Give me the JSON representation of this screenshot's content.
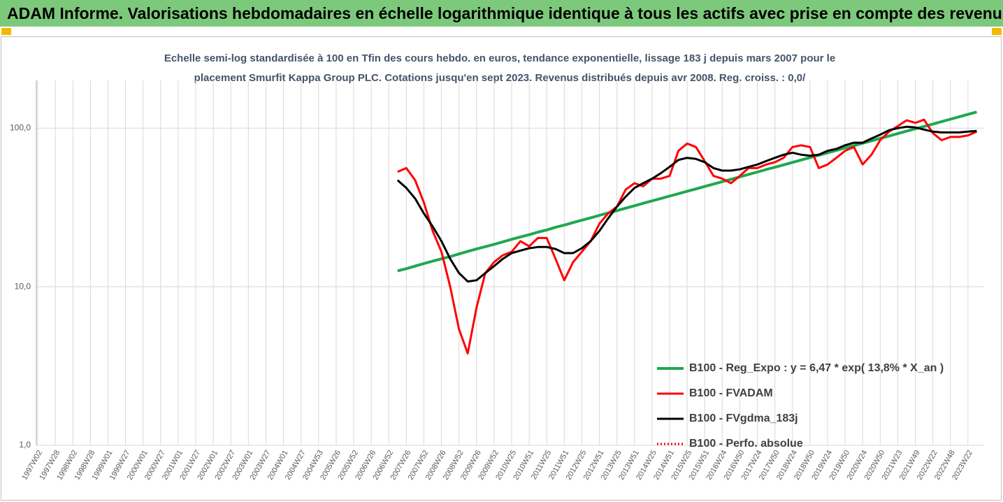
{
  "chart_data": {
    "type": "line",
    "title": "ADAM Informe. Valorisations hebdomadaires en échelle logarithmique identique à tous les actifs avec prise en compte des revenus co",
    "subtitle": [
      "Echelle semi-log standardisée à 100 en Tfin des cours hebdo. en euros, tendance exponentielle, lissage 183 j depuis mars 2007 pour le",
      "placement Smurfit Kappa Group PLC. Cotations jusqu'en sept 2023. Revenus distribués depuis avr 2008. Reg. croiss. : 0,0/"
    ],
    "categories": [
      "1997W02",
      null,
      "1997W28",
      null,
      "1998W02",
      null,
      "1998W28",
      null,
      "1999W01",
      null,
      "1999W27",
      null,
      "2000W01",
      null,
      "2000W27",
      null,
      "2001W01",
      null,
      "2001W27",
      null,
      "2002W01",
      null,
      "2002W27",
      null,
      "2003W01",
      null,
      "2003W27",
      null,
      "2004W01",
      null,
      "2004W27",
      null,
      "2004W53",
      null,
      "2005W26",
      null,
      "2005W52",
      null,
      "2006W26",
      null,
      "2006W52",
      null,
      "2007W26",
      null,
      "2007W52",
      null,
      "2008W26",
      null,
      "2008W52",
      null,
      "2009W26",
      null,
      "2009W52",
      null,
      "2010W25",
      null,
      "2010W51",
      null,
      "2011W25",
      null,
      "2011W51",
      null,
      "2012W25",
      null,
      "2012W51",
      null,
      "2013W25",
      null,
      "2013W51",
      null,
      "2014W25",
      null,
      "2014W51",
      null,
      "2015W25",
      null,
      "2015W51",
      null,
      "2016W24",
      null,
      "2016W50",
      null,
      "2017W24",
      null,
      "2017W50",
      null,
      "2018W24",
      null,
      "2018W50",
      null,
      "2019W24",
      null,
      "2019W50",
      null,
      "2020W24",
      null,
      "2020W50",
      null,
      "2021W23",
      null,
      "2021W49",
      null,
      "2022W22",
      null,
      "2022W48",
      null,
      "2023W22",
      null
    ],
    "log_scale": true,
    "grid": true,
    "ylim": [
      1,
      200
    ],
    "yticks": [
      {
        "value": 1,
        "label": "1,0"
      },
      {
        "value": 10,
        "label": "10,0"
      },
      {
        "value": 100,
        "label": "100,0"
      }
    ],
    "legend": "bottom-right",
    "series": [
      {
        "name": "B100 - Reg_Expo : y = 6,47 * exp( 13,8% *  X_an )",
        "color": "#1fa84f",
        "width": 4,
        "dash": "solid",
        "values": [
          null,
          null,
          null,
          null,
          null,
          null,
          null,
          null,
          null,
          null,
          null,
          null,
          null,
          null,
          null,
          null,
          null,
          null,
          null,
          null,
          null,
          null,
          null,
          null,
          null,
          null,
          null,
          null,
          null,
          null,
          null,
          null,
          null,
          null,
          null,
          null,
          null,
          null,
          null,
          null,
          null,
          12.6,
          13.0,
          13.5,
          14.0,
          14.5,
          15.0,
          15.5,
          16.1,
          16.7,
          17.3,
          17.9,
          18.5,
          19.2,
          19.9,
          20.6,
          21.3,
          22.1,
          22.8,
          23.7,
          24.5,
          25.4,
          26.3,
          27.2,
          28.2,
          29.2,
          30.2,
          31.3,
          32.4,
          33.6,
          34.8,
          36.0,
          37.3,
          38.6,
          40.0,
          41.4,
          42.9,
          44.4,
          46.0,
          47.6,
          49.3,
          51.1,
          52.9,
          54.8,
          56.7,
          58.7,
          60.8,
          63.0,
          65.2,
          67.5,
          69.9,
          72.4,
          75.0,
          77.6,
          80.4,
          83.2,
          86.2,
          89.2,
          92.4,
          95.7,
          99.1,
          102.6,
          106.2,
          110.0,
          113.9,
          117.9,
          122.1,
          126.4
        ]
      },
      {
        "name": "B100 - FVADAM",
        "color": "#ff0000",
        "width": 3,
        "dash": "solid",
        "values": [
          null,
          null,
          null,
          null,
          null,
          null,
          null,
          null,
          null,
          null,
          null,
          null,
          null,
          null,
          null,
          null,
          null,
          null,
          null,
          null,
          null,
          null,
          null,
          null,
          null,
          null,
          null,
          null,
          null,
          null,
          null,
          null,
          null,
          null,
          null,
          null,
          null,
          null,
          null,
          null,
          null,
          53,
          56,
          47,
          34,
          22.5,
          16.6,
          10,
          5.4,
          3.8,
          7.4,
          12.2,
          14.3,
          15.8,
          16.6,
          19.4,
          18,
          20.3,
          20.3,
          15,
          11,
          14.3,
          16.6,
          19.4,
          25,
          29,
          32,
          41,
          45,
          43,
          48,
          48,
          50,
          72,
          80,
          76,
          62,
          50,
          48,
          45,
          50,
          56,
          56,
          59,
          61,
          65,
          76,
          78,
          76,
          56,
          59,
          65,
          72,
          76,
          59,
          68,
          84,
          95,
          103,
          112,
          108,
          113,
          93,
          84,
          88,
          88,
          90,
          95
        ]
      },
      {
        "name": "B100 - FVgdma_183j",
        "color": "#000000",
        "width": 3,
        "dash": "solid",
        "values": [
          null,
          null,
          null,
          null,
          null,
          null,
          null,
          null,
          null,
          null,
          null,
          null,
          null,
          null,
          null,
          null,
          null,
          null,
          null,
          null,
          null,
          null,
          null,
          null,
          null,
          null,
          null,
          null,
          null,
          null,
          null,
          null,
          null,
          null,
          null,
          null,
          null,
          null,
          null,
          null,
          null,
          47,
          42,
          36,
          29,
          24,
          19.4,
          15,
          12.2,
          10.8,
          11,
          12.2,
          13.5,
          15,
          16.3,
          16.9,
          17.5,
          17.8,
          17.8,
          17.3,
          16.3,
          16.3,
          17.5,
          19.4,
          22.5,
          27,
          32,
          37,
          42,
          45,
          48,
          52,
          57,
          63,
          65,
          64,
          61,
          56,
          54,
          54,
          55,
          57,
          59,
          62,
          65,
          68,
          70,
          68,
          67,
          68,
          72,
          74,
          78,
          81,
          81,
          86,
          91,
          97,
          100,
          102,
          101,
          98,
          95,
          94,
          94,
          94,
          95,
          96
        ]
      },
      {
        "name": "B100 - Perfo. absolue",
        "color": "#ff0000",
        "width": 3,
        "dash": "dotted",
        "values": [
          null,
          null,
          null,
          null,
          null,
          null,
          null,
          null,
          null,
          null,
          null,
          null,
          null,
          null,
          null,
          null,
          null,
          null,
          null,
          null,
          null,
          null,
          null,
          null,
          null,
          null,
          null,
          null,
          null,
          null,
          null,
          null,
          null,
          null,
          null,
          null,
          null,
          null,
          null,
          null,
          null,
          null,
          null,
          null,
          null,
          null,
          null,
          null,
          null,
          null,
          null,
          null,
          null,
          null,
          null,
          null,
          null,
          null,
          null,
          null,
          null,
          null,
          null,
          null,
          null,
          null,
          null,
          null,
          null,
          null,
          null,
          null,
          null,
          null,
          null,
          null,
          null,
          null,
          null,
          null,
          null,
          null,
          null,
          null,
          null,
          null,
          null,
          null,
          null,
          null,
          null,
          null,
          null,
          null,
          null,
          null,
          null,
          null,
          null,
          null,
          null,
          null,
          null,
          null,
          null,
          null,
          null,
          null
        ]
      }
    ]
  }
}
